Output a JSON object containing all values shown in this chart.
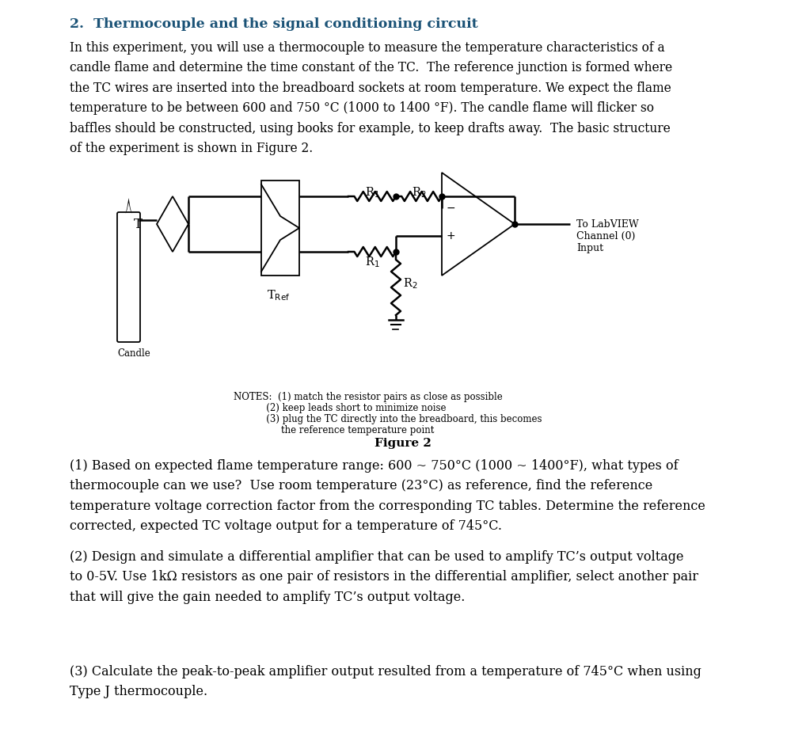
{
  "title": "2.  Thermocouple and the signal conditioning circuit",
  "title_color": "#1a5276",
  "bg_color": "#ffffff",
  "body_text_1": "In this experiment, you will use a thermocouple to measure the temperature characteristics of a\ncandle flame and determine the time constant of the TC.  The reference junction is formed where\nthe TC wires are inserted into the breadboard sockets at room temperature. We expect the flame\ntemperature to be between 600 and 750 °C (1000 to 1400 °F). The candle flame will flicker so\nbaffles should be constructed, using books for example, to keep drafts away.  The basic structure\nof the experiment is shown in Figure 2.",
  "q1_text": "(1) Based on expected flame temperature range: 600 ~ 750°C (1000 ~ 1400°F), what types of\nthermocouple can we use?  Use room temperature (23°C) as reference, find the reference\ntemperature voltage correction factor from the corresponding TC tables. Determine the reference\ncorrected, expected TC voltage output for a temperature of 745°C.",
  "q2_text": "(2) Design and simulate a differential amplifier that can be used to amplify TC’s output voltage\nto 0-5V. Use 1kΩ resistors as one pair of resistors in the differential amplifier, select another pair\nthat will give the gain needed to amplify TC’s output voltage.",
  "q3_text": "(3) Calculate the peak-to-peak amplifier output resulted from a temperature of 745°C when using\nType J thermocouple.",
  "figure_caption": "Figure 2",
  "notes_line1": "NOTES:  (1) match the resistor pairs as close as possible",
  "notes_line2": "           (2) keep leads short to minimize noise",
  "notes_line3": "           (3) plug the TC directly into the breadboard, this becomes",
  "notes_line4": "                the reference temperature point",
  "labview_text": "To LabVIEW\nChannel (0)\nInput"
}
